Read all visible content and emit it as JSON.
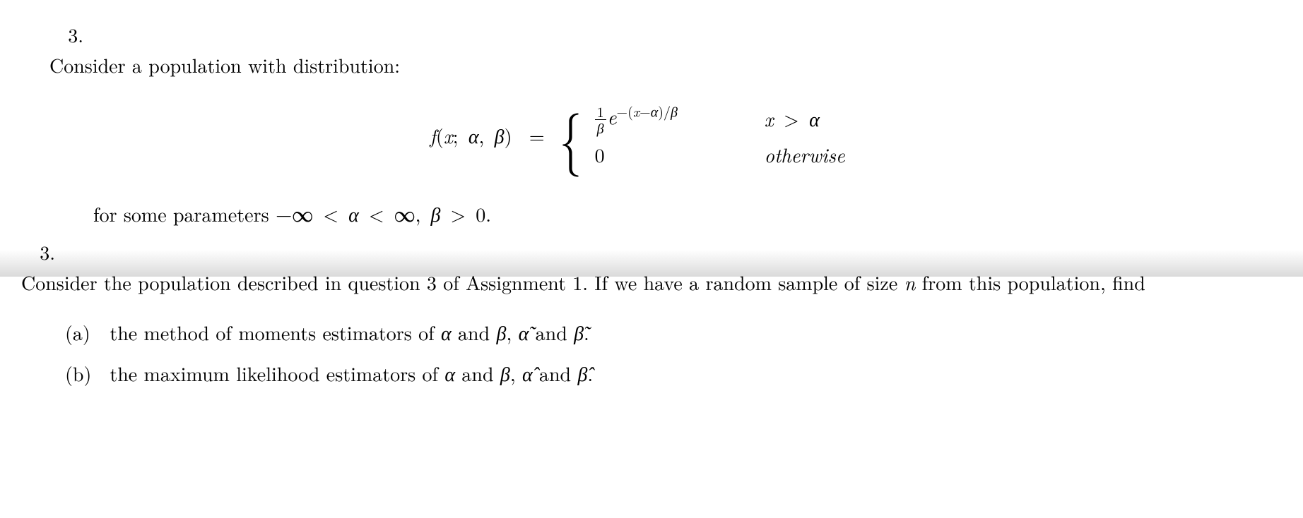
{
  "q3a": {
    "num": "3.",
    "intro": "Consider a population with distribution:",
    "lhs_f": "f",
    "lhs_args_open": "(",
    "lhs_x": "x",
    "lhs_sep1": ";",
    "lhs_alpha": "α",
    "lhs_comma": ",",
    "lhs_beta": "β",
    "lhs_close": ")",
    "eq": "=",
    "frac_num": "1",
    "frac_den": "β",
    "e": "e",
    "exp_open": "−(",
    "exp_x": "x",
    "exp_minus": "−",
    "exp_alpha": "α",
    "exp_close": ")/",
    "exp_beta": "β",
    "cond1_x": "x",
    "cond1_gt": ">",
    "cond1_alpha": "α",
    "zero": "0",
    "otherwise": "otherwise",
    "param_text_1": "for some parameters ",
    "neg_inf": "−∞",
    "lt1": "<",
    "alpha2": "α",
    "lt2": "<",
    "pos_inf": "∞",
    "comma2": ",",
    "beta2": "β",
    "gt2": ">",
    "zero2": "0",
    "period": "."
  },
  "q3b": {
    "num": "3.",
    "text1": "Consider the population described in question 3 of Assignment 1.  If we have a random sample of size ",
    "n": "n",
    "text2": " from this population, find",
    "a_label": "(a)",
    "a_text1": "the method of moments estimators of ",
    "a_alpha": "α",
    "a_and1": " and ",
    "a_beta": "β",
    "a_comma": ", ",
    "a_atilde": "α̃",
    "a_and2": " and ",
    "a_btilde": "β̃",
    "a_period": ".",
    "b_label": "(b)",
    "b_text1": "the maximum likelihood estimators of ",
    "b_alpha": "α",
    "b_and1": " and ",
    "b_beta": "β",
    "b_comma": ", ",
    "b_ahat": "α̂",
    "b_and2": " and ",
    "b_bhat": "β̂",
    "b_period": "."
  }
}
